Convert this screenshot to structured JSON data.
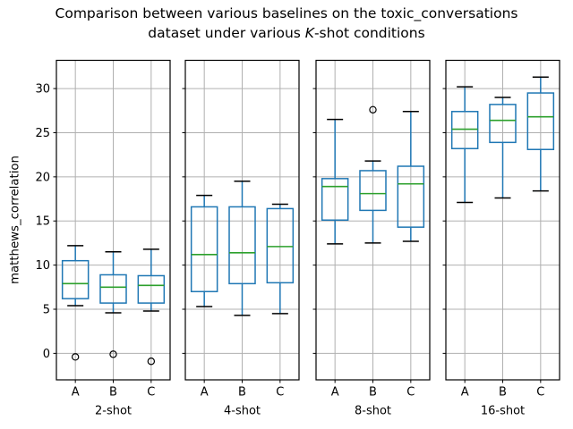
{
  "figure": {
    "title_line1": "Comparison between various baselines on the toxic_conversations",
    "title_line2_pre": "dataset under various ",
    "title_line2_italic": "K",
    "title_line2_post": "-shot conditions",
    "ylabel": "matthews_correlation"
  },
  "chart_data": {
    "type": "boxplot",
    "title": "Comparison between various baselines on the toxic_conversations dataset under various K-shot conditions",
    "ylabel": "matthews_correlation",
    "ylim": [
      -3.0,
      33.2
    ],
    "yticks": [
      0,
      5,
      10,
      15,
      20,
      25,
      30
    ],
    "grid": true,
    "legend": "none",
    "colors": {
      "box": "#1f77b4",
      "median": "#2ca02c",
      "caps": "#000000",
      "fliers": "#000000",
      "grid": "#b0b0b0",
      "spine": "#000000"
    },
    "groups": [
      {
        "label": "2-shot",
        "categories": [
          "A",
          "B",
          "C"
        ],
        "boxes": [
          {
            "whislo": 5.4,
            "q1": 6.2,
            "med": 7.9,
            "q3": 10.5,
            "whishi": 12.2,
            "fliers": [
              -0.4
            ]
          },
          {
            "whislo": 4.6,
            "q1": 5.7,
            "med": 7.5,
            "q3": 8.9,
            "whishi": 11.5,
            "fliers": [
              -0.1
            ]
          },
          {
            "whislo": 4.8,
            "q1": 5.7,
            "med": 7.7,
            "q3": 8.8,
            "whishi": 11.8,
            "fliers": [
              -0.9
            ]
          }
        ]
      },
      {
        "label": "4-shot",
        "categories": [
          "A",
          "B",
          "C"
        ],
        "boxes": [
          {
            "whislo": 5.3,
            "q1": 7.0,
            "med": 11.2,
            "q3": 16.6,
            "whishi": 17.9,
            "fliers": []
          },
          {
            "whislo": 4.3,
            "q1": 7.9,
            "med": 11.4,
            "q3": 16.6,
            "whishi": 19.5,
            "fliers": []
          },
          {
            "whislo": 4.5,
            "q1": 8.0,
            "med": 12.1,
            "q3": 16.4,
            "whishi": 16.9,
            "fliers": []
          }
        ]
      },
      {
        "label": "8-shot",
        "categories": [
          "A",
          "B",
          "C"
        ],
        "boxes": [
          {
            "whislo": 12.4,
            "q1": 15.1,
            "med": 18.9,
            "q3": 19.8,
            "whishi": 26.5,
            "fliers": []
          },
          {
            "whislo": 12.5,
            "q1": 16.2,
            "med": 18.1,
            "q3": 20.7,
            "whishi": 21.8,
            "fliers": [
              27.6
            ]
          },
          {
            "whislo": 12.7,
            "q1": 14.3,
            "med": 19.2,
            "q3": 21.2,
            "whishi": 27.4,
            "fliers": []
          }
        ]
      },
      {
        "label": "16-shot",
        "categories": [
          "A",
          "B",
          "C"
        ],
        "boxes": [
          {
            "whislo": 17.1,
            "q1": 23.2,
            "med": 25.4,
            "q3": 27.4,
            "whishi": 30.2,
            "fliers": []
          },
          {
            "whislo": 17.6,
            "q1": 23.9,
            "med": 26.4,
            "q3": 28.2,
            "whishi": 29.0,
            "fliers": []
          },
          {
            "whislo": 18.4,
            "q1": 23.1,
            "med": 26.8,
            "q3": 29.5,
            "whishi": 31.3,
            "fliers": []
          }
        ]
      }
    ]
  }
}
